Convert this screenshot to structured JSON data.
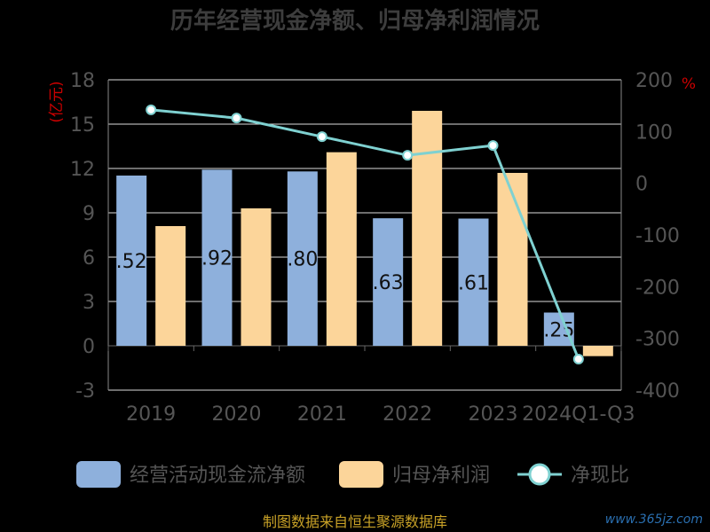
{
  "chart_data": {
    "type": "bar",
    "title": "历年经营现金净额、归母净利润情况",
    "categories": [
      "2019",
      "2020",
      "2021",
      "2022",
      "2023",
      "2024Q1-Q3"
    ],
    "series": [
      {
        "name": "经营活动现金流净额",
        "axis": "left",
        "type": "bar",
        "color": "#8eb0dc",
        "values": [
          11.52,
          11.92,
          11.8,
          8.63,
          8.61,
          2.25
        ]
      },
      {
        "name": "归母净利润",
        "axis": "left",
        "type": "bar",
        "color": "#fcd59a",
        "values": [
          8.1,
          9.3,
          13.1,
          15.9,
          11.7,
          -0.7
        ]
      },
      {
        "name": "净现比",
        "axis": "right",
        "type": "line",
        "color": "#7fd1d1",
        "values": [
          142,
          126,
          90,
          54,
          73,
          -340
        ]
      }
    ],
    "data_labels": [
      ".52",
      ".92",
      ".80",
      ".63",
      ".61",
      ".25"
    ],
    "left_axis": {
      "unit": "(亿元)",
      "min": -3,
      "max": 18,
      "ticks": [
        "18",
        "15",
        "12",
        "9",
        "6",
        "3",
        "0",
        "-3"
      ]
    },
    "right_axis": {
      "unit": "%",
      "min": -400,
      "max": 200,
      "ticks": [
        "200",
        "100",
        "0",
        "-100",
        "-200",
        "-300",
        "-400"
      ]
    },
    "grid": true,
    "legend_position": "bottom"
  },
  "footer": "制图数据来自恒生聚源数据库",
  "watermark": "www.365jz.com"
}
